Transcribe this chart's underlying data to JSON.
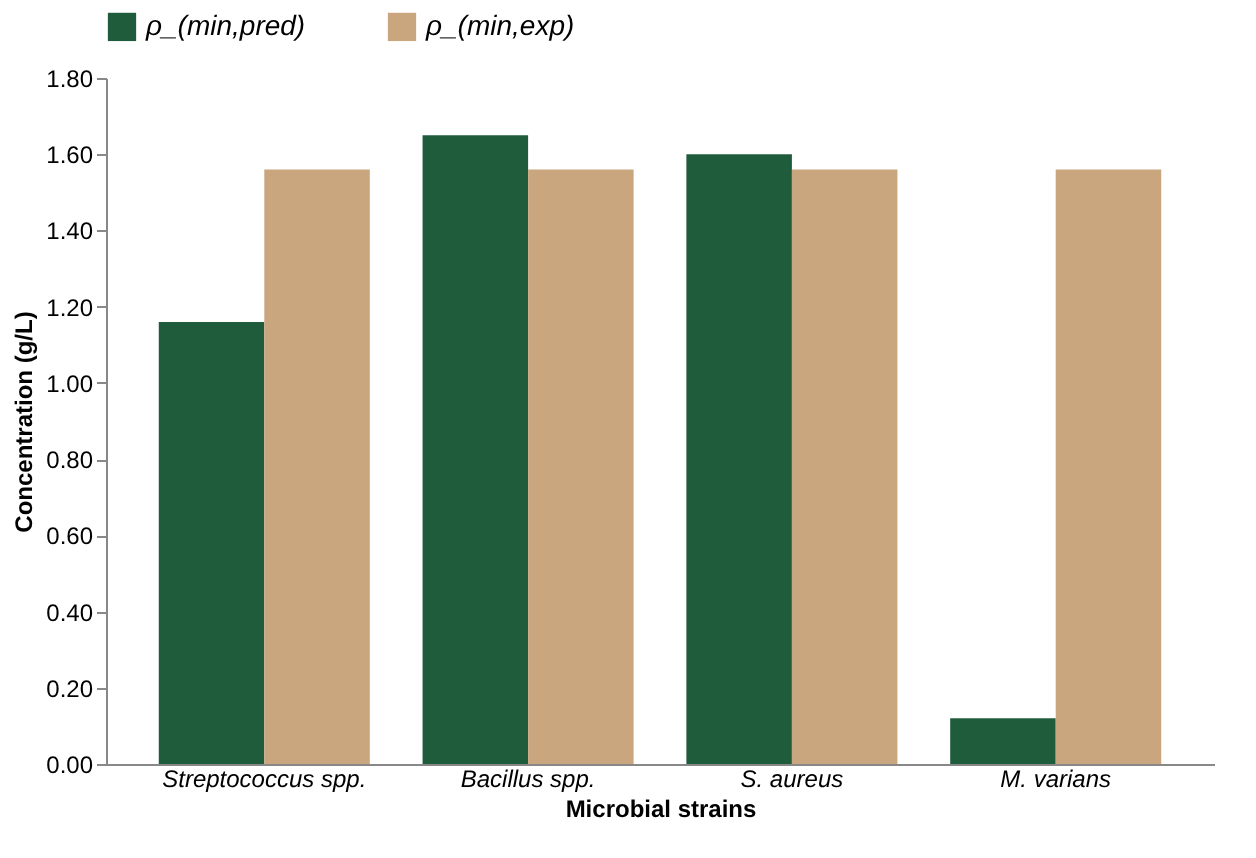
{
  "chart_data": {
    "type": "bar",
    "xlabel": "Microbial strains",
    "ylabel": "Concentration (g/L)",
    "categories": [
      "Streptococcus spp.",
      "Bacillus spp.",
      "S. aureus",
      "M. varians"
    ],
    "series": [
      {
        "name": "ρ_(min,pred)",
        "color": "#1f5c3c",
        "values": [
          1.16,
          1.65,
          1.6,
          0.12
        ]
      },
      {
        "name": "ρ_(min,exp)",
        "color": "#c9a67e",
        "values": [
          1.56,
          1.56,
          1.56,
          1.56
        ]
      }
    ],
    "ylim": [
      0,
      1.8
    ],
    "yticks": [
      {
        "value": 0,
        "label": "0.00"
      },
      {
        "value": 0.2,
        "label": "0.20"
      },
      {
        "value": 0.4,
        "label": "0.40"
      },
      {
        "value": 0.6,
        "label": "0.60"
      },
      {
        "value": 0.8,
        "label": "0.80"
      },
      {
        "value": 1.0,
        "label": "1.00"
      },
      {
        "value": 1.2,
        "label": "1.20"
      },
      {
        "value": 1.4,
        "label": "1.40"
      },
      {
        "value": 1.6,
        "label": "1.60"
      },
      {
        "value": 1.8,
        "label": "1.80"
      }
    ],
    "grid": false,
    "legend": "top"
  }
}
